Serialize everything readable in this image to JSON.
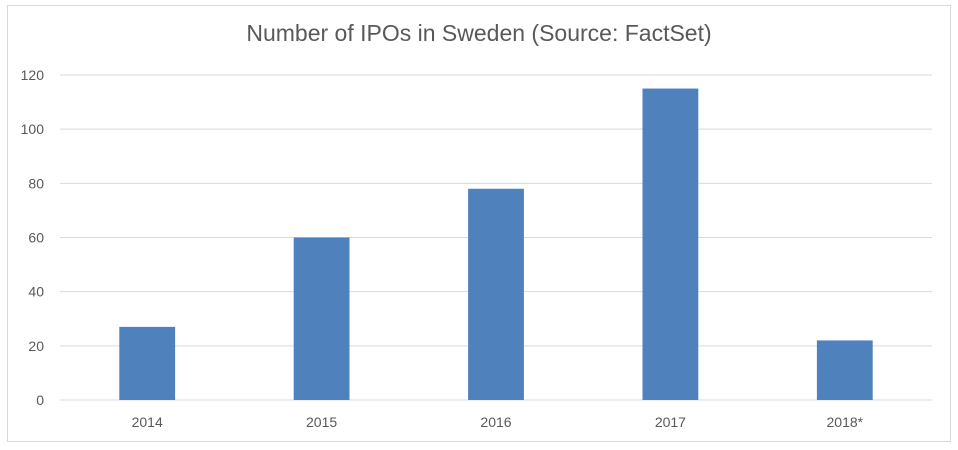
{
  "chart_data": {
    "type": "bar",
    "title": "Number of IPOs in Sweden (Source: FactSet)",
    "categories": [
      "2014",
      "2015",
      "2016",
      "2017",
      "2018*"
    ],
    "values": [
      27,
      60,
      78,
      115,
      22
    ],
    "ylim": [
      0,
      120
    ],
    "yticks": [
      0,
      20,
      40,
      60,
      80,
      100,
      120
    ],
    "grid": true,
    "legend": "none",
    "bar_color": "#4f81bd",
    "grid_color": "#d9d9d9"
  }
}
